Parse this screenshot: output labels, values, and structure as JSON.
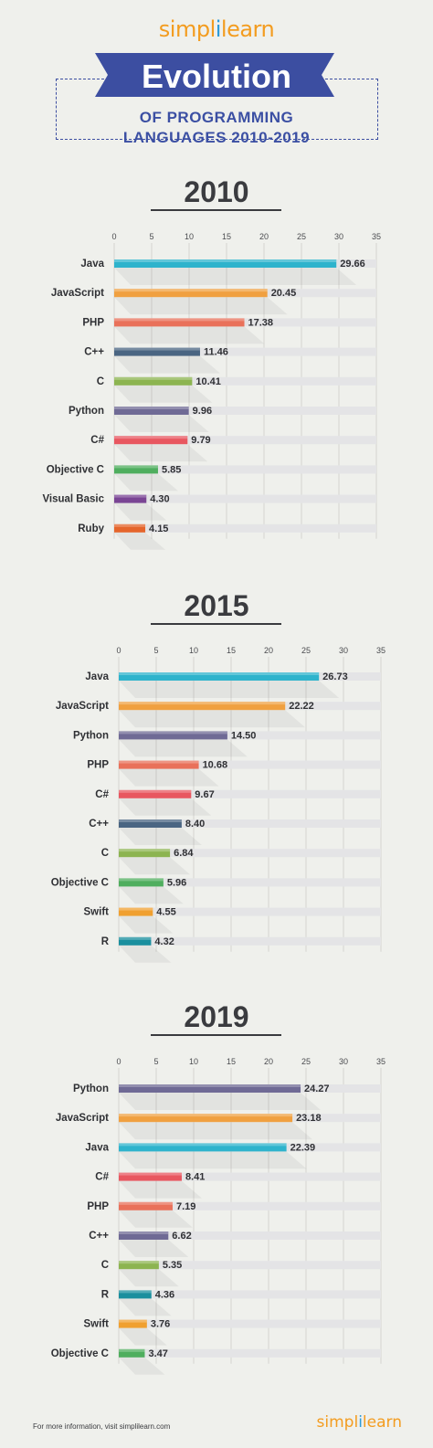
{
  "header": {
    "logo_left": "simpl",
    "logo_bar": "i",
    "logo_right": "learn",
    "title": "Evolution",
    "subtitle_line1": "OF PROGRAMMING",
    "subtitle_line2": "LANGUAGES 2010-2019"
  },
  "footer": {
    "info": "For more information, visit simplilearn.com",
    "logo_left": "simpl",
    "logo_bar": "i",
    "logo_right": "learn"
  },
  "colors": {
    "background": "#eff0ec",
    "ribbon": "#3c4ea1",
    "brand_orange": "#f39c1f",
    "brand_blue": "#2d9bd8"
  },
  "chart_data": [
    {
      "type": "bar",
      "orientation": "horizontal",
      "title": "2010",
      "xlim": [
        0,
        35
      ],
      "ticks": [
        0,
        5,
        10,
        15,
        20,
        25,
        30,
        35
      ],
      "grid": true,
      "categories": [
        "Java",
        "JavaScript",
        "PHP",
        "C++",
        "C",
        "Python",
        "C#",
        "Objective C",
        "Visual Basic",
        "Ruby"
      ],
      "values": [
        29.66,
        20.45,
        17.38,
        11.46,
        10.41,
        9.96,
        9.79,
        5.85,
        4.3,
        4.15
      ],
      "labels": [
        "29.66",
        "20.45",
        "17.38",
        "11.46",
        "10.41",
        "9.96",
        "9.79",
        "5.85",
        "4.30",
        "4.15"
      ],
      "colors": [
        "#2eb3cc",
        "#f0a040",
        "#e9715a",
        "#4a6582",
        "#8cb450",
        "#6f6a95",
        "#e85760",
        "#4fae5e",
        "#7a4594",
        "#e5652b"
      ]
    },
    {
      "type": "bar",
      "orientation": "horizontal",
      "title": "2015",
      "xlim": [
        0,
        35
      ],
      "ticks": [
        0,
        5,
        10,
        15,
        20,
        25,
        30,
        35
      ],
      "grid": true,
      "categories": [
        "Java",
        "JavaScript",
        "Python",
        "PHP",
        "C#",
        "C++",
        "C",
        "Objective C",
        "Swift",
        "R"
      ],
      "values": [
        26.73,
        22.22,
        14.5,
        10.68,
        9.67,
        8.4,
        6.84,
        5.96,
        4.55,
        4.32
      ],
      "labels": [
        "26.73",
        "22.22",
        "14.50",
        "10.68",
        "9.67",
        "8.40",
        "6.84",
        "5.96",
        "4.55",
        "4.32"
      ],
      "colors": [
        "#2eb3cc",
        "#f0a040",
        "#6f6a95",
        "#e9715a",
        "#e85760",
        "#4a6582",
        "#8cb450",
        "#4fae5e",
        "#f0a030",
        "#1a8f9e"
      ]
    },
    {
      "type": "bar",
      "orientation": "horizontal",
      "title": "2019",
      "xlim": [
        0,
        35
      ],
      "ticks": [
        0,
        5,
        10,
        15,
        20,
        25,
        30,
        35
      ],
      "grid": true,
      "categories": [
        "Python",
        "JavaScript",
        "Java",
        "C#",
        "PHP",
        "C++",
        "C",
        "R",
        "Swift",
        "Objective C"
      ],
      "values": [
        24.27,
        23.18,
        22.39,
        8.41,
        7.19,
        6.62,
        5.35,
        4.36,
        3.76,
        3.47
      ],
      "labels": [
        "24.27",
        "23.18",
        "22.39",
        "8.41",
        "7.19",
        "6.62",
        "5.35",
        "4.36",
        "3.76",
        "3.47"
      ],
      "colors": [
        "#6f6a95",
        "#f0a040",
        "#2eb3cc",
        "#e85760",
        "#e9715a",
        "#6f6a95",
        "#8cb450",
        "#1a8f9e",
        "#f0a030",
        "#4fae5e"
      ]
    }
  ]
}
